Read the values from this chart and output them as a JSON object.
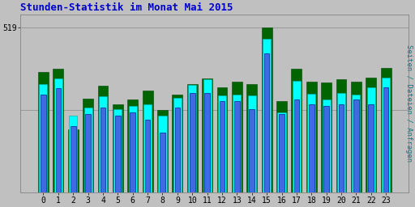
{
  "title": "Stunden-Statistik im Monat Mai 2015",
  "ylabel_right": "Seiten / Dateien / Anfragen",
  "hours": [
    0,
    1,
    2,
    3,
    4,
    5,
    6,
    7,
    8,
    9,
    10,
    11,
    12,
    13,
    14,
    15,
    16,
    17,
    18,
    19,
    20,
    21,
    22,
    23
  ],
  "seiten": [
    380,
    390,
    200,
    295,
    335,
    278,
    292,
    320,
    260,
    308,
    342,
    358,
    332,
    348,
    342,
    519,
    288,
    388,
    348,
    345,
    355,
    348,
    360,
    392
  ],
  "dateien": [
    340,
    358,
    242,
    268,
    302,
    262,
    272,
    278,
    242,
    298,
    338,
    355,
    305,
    308,
    305,
    482,
    252,
    352,
    310,
    292,
    312,
    308,
    330,
    362
  ],
  "anfragen": [
    308,
    328,
    210,
    248,
    268,
    242,
    252,
    228,
    188,
    268,
    312,
    312,
    288,
    288,
    262,
    438,
    248,
    292,
    278,
    272,
    278,
    292,
    278,
    332
  ],
  "color_seiten": "#006400",
  "color_dateien": "#00FFFF",
  "color_anfragen": "#4169E1",
  "bg_color": "#C0C0C0",
  "plot_bg": "#C0C0C0",
  "ytick_label": "519",
  "ytick_value": 519,
  "bar_width": 0.7,
  "title_color": "#0000CC",
  "ylabel_right_color": "#008080",
  "ymax": 560,
  "hline1": 519,
  "hline2": 260
}
